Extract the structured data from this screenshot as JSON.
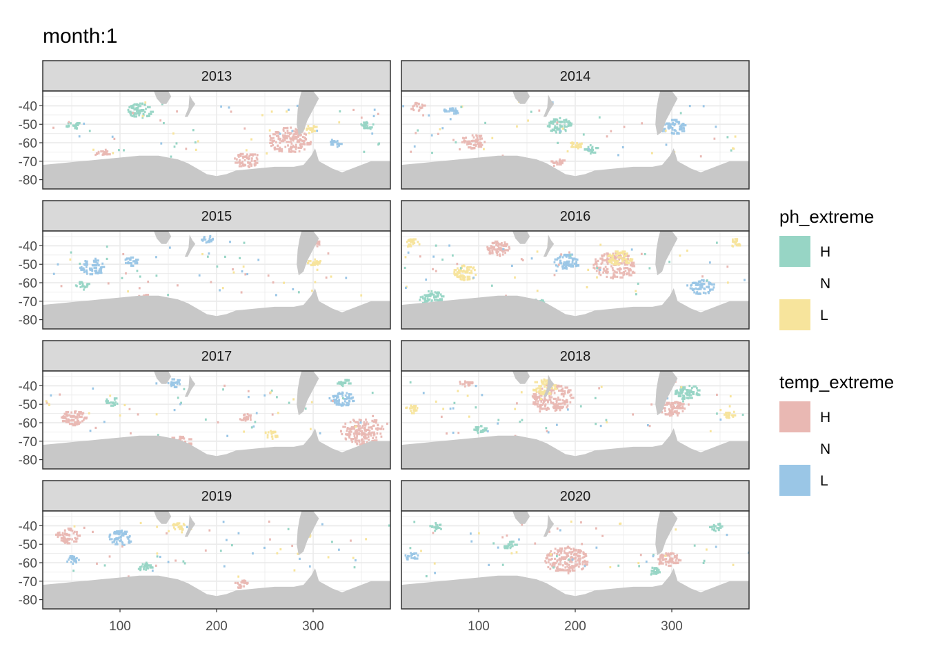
{
  "chart_data": {
    "type": "heatmap",
    "title": "month:1",
    "xlabel": "",
    "ylabel": "",
    "xlim": [
      20,
      380
    ],
    "ylim": [
      -85,
      -32
    ],
    "x_ticks": [
      100,
      200,
      300
    ],
    "y_ticks": [
      -40,
      -50,
      -60,
      -70,
      -80
    ],
    "grid": true,
    "legend_position": "right",
    "colors": {
      "panel_bg": "#ffffff",
      "grid": "#ebebeb",
      "land": "#c8c8c8",
      "strip_bg": "#d9d9d9",
      "border": "#333333",
      "ph_H": "#97d5c5",
      "ph_L": "#f7e49c",
      "temp_H": "#e9b8b3",
      "temp_L": "#9ac6e6"
    },
    "legends": [
      {
        "title": "ph_extreme",
        "labels": [
          "H",
          "N",
          "L"
        ],
        "colors": [
          "#97d5c5",
          "none",
          "#f7e49c"
        ]
      },
      {
        "title": "temp_extreme",
        "labels": [
          "H",
          "N",
          "L"
        ],
        "colors": [
          "#e9b8b3",
          "none",
          "#9ac6e6"
        ]
      }
    ],
    "panels": [
      {
        "year": "2013",
        "blobs": [
          {
            "var": "temp",
            "level": "H",
            "lon": 275,
            "lat": -58,
            "size": 3
          },
          {
            "var": "temp",
            "level": "H",
            "lon": 230,
            "lat": -69,
            "size": 2
          },
          {
            "var": "temp",
            "level": "L",
            "lon": 320,
            "lat": -60,
            "size": 1
          },
          {
            "var": "ph",
            "level": "H",
            "lon": 120,
            "lat": -42,
            "size": 2
          },
          {
            "var": "ph",
            "level": "H",
            "lon": 50,
            "lat": -50,
            "size": 1
          },
          {
            "var": "ph",
            "level": "H",
            "lon": 355,
            "lat": -50,
            "size": 1
          },
          {
            "var": "ph",
            "level": "L",
            "lon": 295,
            "lat": -52,
            "size": 1
          },
          {
            "var": "temp",
            "level": "H",
            "lon": 80,
            "lat": -65,
            "size": 1
          }
        ]
      },
      {
        "year": "2014",
        "blobs": [
          {
            "var": "temp",
            "level": "H",
            "lon": 35,
            "lat": -40,
            "size": 1
          },
          {
            "var": "temp",
            "level": "H",
            "lon": 93,
            "lat": -59,
            "size": 2
          },
          {
            "var": "temp",
            "level": "H",
            "lon": 180,
            "lat": -70,
            "size": 1
          },
          {
            "var": "temp",
            "level": "L",
            "lon": 300,
            "lat": -51,
            "size": 2
          },
          {
            "var": "temp",
            "level": "L",
            "lon": 70,
            "lat": -42,
            "size": 1
          },
          {
            "var": "ph",
            "level": "H",
            "lon": 182,
            "lat": -50,
            "size": 2
          },
          {
            "var": "ph",
            "level": "H",
            "lon": 215,
            "lat": -63,
            "size": 1
          },
          {
            "var": "ph",
            "level": "L",
            "lon": 200,
            "lat": -61,
            "size": 1
          }
        ]
      },
      {
        "year": "2015",
        "blobs": [
          {
            "var": "temp",
            "level": "L",
            "lon": 190,
            "lat": -36,
            "size": 1
          },
          {
            "var": "temp",
            "level": "L",
            "lon": 70,
            "lat": -51,
            "size": 2
          },
          {
            "var": "temp",
            "level": "L",
            "lon": 110,
            "lat": -48,
            "size": 1
          },
          {
            "var": "ph",
            "level": "H",
            "lon": 60,
            "lat": -61,
            "size": 1
          },
          {
            "var": "temp",
            "level": "H",
            "lon": 300,
            "lat": -38,
            "size": 1
          },
          {
            "var": "ph",
            "level": "L",
            "lon": 300,
            "lat": -48,
            "size": 1
          },
          {
            "var": "temp",
            "level": "H",
            "lon": 120,
            "lat": -67,
            "size": 1
          }
        ]
      },
      {
        "year": "2016",
        "blobs": [
          {
            "var": "temp",
            "level": "H",
            "lon": 240,
            "lat": -50,
            "size": 3
          },
          {
            "var": "ph",
            "level": "L",
            "lon": 245,
            "lat": -46,
            "size": 2
          },
          {
            "var": "temp",
            "level": "L",
            "lon": 190,
            "lat": -48,
            "size": 2
          },
          {
            "var": "temp",
            "level": "L",
            "lon": 330,
            "lat": -62,
            "size": 2
          },
          {
            "var": "temp",
            "level": "H",
            "lon": 120,
            "lat": -41,
            "size": 2
          },
          {
            "var": "ph",
            "level": "L",
            "lon": 85,
            "lat": -54,
            "size": 2
          },
          {
            "var": "ph",
            "level": "L",
            "lon": 30,
            "lat": -38,
            "size": 1
          },
          {
            "var": "ph",
            "level": "H",
            "lon": 50,
            "lat": -68,
            "size": 2
          },
          {
            "var": "ph",
            "level": "H",
            "lon": 160,
            "lat": -70,
            "size": 1
          },
          {
            "var": "ph",
            "level": "L",
            "lon": 365,
            "lat": -38,
            "size": 1
          }
        ]
      },
      {
        "year": "2017",
        "blobs": [
          {
            "var": "temp",
            "level": "H",
            "lon": 350,
            "lat": -64,
            "size": 3
          },
          {
            "var": "temp",
            "level": "H",
            "lon": 50,
            "lat": -57,
            "size": 2
          },
          {
            "var": "temp",
            "level": "H",
            "lon": 160,
            "lat": -70,
            "size": 2
          },
          {
            "var": "temp",
            "level": "H",
            "lon": 230,
            "lat": -57,
            "size": 1
          },
          {
            "var": "temp",
            "level": "L",
            "lon": 330,
            "lat": -47,
            "size": 2
          },
          {
            "var": "ph",
            "level": "H",
            "lon": 330,
            "lat": -38,
            "size": 1
          },
          {
            "var": "ph",
            "level": "L",
            "lon": 255,
            "lat": -66,
            "size": 1
          },
          {
            "var": "ph",
            "level": "H",
            "lon": 90,
            "lat": -48,
            "size": 1
          },
          {
            "var": "temp",
            "level": "L",
            "lon": 155,
            "lat": -38,
            "size": 1
          }
        ]
      },
      {
        "year": "2018",
        "blobs": [
          {
            "var": "temp",
            "level": "H",
            "lon": 175,
            "lat": -46,
            "size": 3
          },
          {
            "var": "ph",
            "level": "L",
            "lon": 167,
            "lat": -40,
            "size": 2
          },
          {
            "var": "temp",
            "level": "H",
            "lon": 300,
            "lat": -52,
            "size": 2
          },
          {
            "var": "ph",
            "level": "L",
            "lon": 30,
            "lat": -52,
            "size": 1
          },
          {
            "var": "ph",
            "level": "L",
            "lon": 360,
            "lat": -55,
            "size": 1
          },
          {
            "var": "ph",
            "level": "H",
            "lon": 315,
            "lat": -43,
            "size": 2
          },
          {
            "var": "ph",
            "level": "H",
            "lon": 100,
            "lat": -63,
            "size": 1
          },
          {
            "var": "temp",
            "level": "H",
            "lon": 85,
            "lat": -38,
            "size": 1
          }
        ]
      },
      {
        "year": "2019",
        "blobs": [
          {
            "var": "temp",
            "level": "H",
            "lon": 45,
            "lat": -45,
            "size": 2
          },
          {
            "var": "temp",
            "level": "L",
            "lon": 100,
            "lat": -46,
            "size": 2
          },
          {
            "var": "temp",
            "level": "L",
            "lon": 50,
            "lat": -58,
            "size": 1
          },
          {
            "var": "ph",
            "level": "L",
            "lon": 160,
            "lat": -40,
            "size": 1
          },
          {
            "var": "ph",
            "level": "L",
            "lon": 290,
            "lat": -44,
            "size": 1
          },
          {
            "var": "temp",
            "level": "H",
            "lon": 225,
            "lat": -71,
            "size": 1
          },
          {
            "var": "ph",
            "level": "H",
            "lon": 125,
            "lat": -62,
            "size": 1
          }
        ]
      },
      {
        "year": "2020",
        "blobs": [
          {
            "var": "temp",
            "level": "H",
            "lon": 190,
            "lat": -58,
            "size": 3
          },
          {
            "var": "temp",
            "level": "H",
            "lon": 295,
            "lat": -58,
            "size": 2
          },
          {
            "var": "ph",
            "level": "H",
            "lon": 280,
            "lat": -64,
            "size": 1
          },
          {
            "var": "ph",
            "level": "H",
            "lon": 130,
            "lat": -50,
            "size": 1
          },
          {
            "var": "ph",
            "level": "H",
            "lon": 55,
            "lat": -40,
            "size": 1
          },
          {
            "var": "temp",
            "level": "L",
            "lon": 30,
            "lat": -56,
            "size": 1
          },
          {
            "var": "ph",
            "level": "H",
            "lon": 345,
            "lat": -40,
            "size": 1
          }
        ]
      }
    ]
  }
}
